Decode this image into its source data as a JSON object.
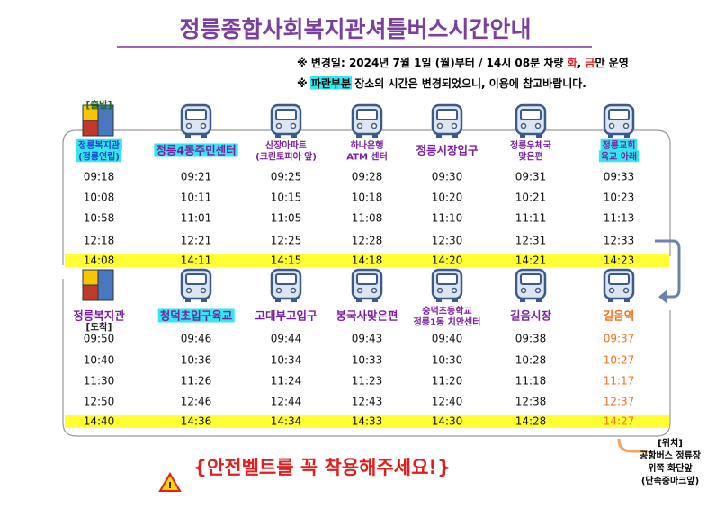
{
  "title": "정릉종합사회복지관셔틀버스시간안내",
  "notices": [
    {
      "parts": [
        {
          "text": "※ 변경일: 2024년 7월 1일 (월)부터  / 14시 08분 차량 "
        },
        {
          "text": "화",
          "color": "#e02020"
        },
        {
          "text": ", "
        },
        {
          "text": "금",
          "color": "#e02020"
        },
        {
          "text": "만 운영"
        }
      ]
    },
    {
      "parts": [
        {
          "text": "※ "
        },
        {
          "text": "파란부분",
          "highlight": true
        },
        {
          "text": " 장소의 시간은 변경되었으니, 이용에 참고바랍니다."
        }
      ]
    }
  ],
  "routes": [
    {
      "label": "[출발]",
      "highlight_row": 4,
      "stops": [
        {
          "name": [
            "정릉복지관",
            "(정릉연립)"
          ],
          "highlight": true,
          "color": "#1a3fcf",
          "small": true
        },
        {
          "name": [
            "정릉4동주민센터"
          ],
          "highlight": true,
          "color": "#7b1fa2"
        },
        {
          "name": [
            "산장아파트",
            "(크린토피아 앞)"
          ],
          "color": "#7b1fa2",
          "small": true
        },
        {
          "name": [
            "하나은행",
            "ATM 센터"
          ],
          "color": "#7b1fa2",
          "small": true
        },
        {
          "name": [
            "정릉시장입구"
          ],
          "color": "#7b1fa2"
        },
        {
          "name": [
            "정릉우체국",
            "맞은편"
          ],
          "color": "#7b1fa2",
          "small": true
        },
        {
          "name": [
            "정릉교회",
            "육교 아래"
          ],
          "highlight": true,
          "color": "#7b1fa2",
          "small": true
        }
      ],
      "times": [
        [
          "09:18",
          "09:21",
          "09:25",
          "09:28",
          "09:30",
          "09:31",
          "09:33"
        ],
        [
          "10:08",
          "10:11",
          "10:15",
          "10:18",
          "10:20",
          "10:21",
          "10:23"
        ],
        [
          "10:58",
          "11:01",
          "11:05",
          "11:08",
          "11:10",
          "11:11",
          "11:13"
        ],
        [
          "12:18",
          "12:21",
          "12:25",
          "12:28",
          "12:30",
          "12:31",
          "12:33"
        ],
        [
          "14:08",
          "14:11",
          "14:15",
          "14:18",
          "14:20",
          "14:21",
          "14:23"
        ]
      ]
    },
    {
      "label": "[도착]",
      "highlight_row": 4,
      "stops": [
        {
          "name": [
            "정릉복지관"
          ],
          "color": "#7b1fa2"
        },
        {
          "name": [
            "청덕초입구육교"
          ],
          "highlight": true,
          "color": "#7b1fa2"
        },
        {
          "name": [
            "고대부고입구"
          ],
          "color": "#7b1fa2"
        },
        {
          "name": [
            "봉국사맞은편"
          ],
          "color": "#7b1fa2"
        },
        {
          "name": [
            "숭덕초등학교",
            "정릉1동 치안센터"
          ],
          "color": "#7b1fa2",
          "small": true
        },
        {
          "name": [
            "길음시장"
          ],
          "color": "#7b1fa2"
        },
        {
          "name": [
            "길음역"
          ],
          "color": "#f07020",
          "time_color": "#f07020"
        }
      ],
      "times": [
        [
          "09:50",
          "09:46",
          "09:44",
          "09:43",
          "09:40",
          "09:38",
          "09:37"
        ],
        [
          "10:40",
          "10:36",
          "10:34",
          "10:33",
          "10:30",
          "10:28",
          "10:27"
        ],
        [
          "11:30",
          "11:26",
          "11:24",
          "11:23",
          "11:20",
          "11:18",
          "11:17"
        ],
        [
          "12:50",
          "12:46",
          "12:44",
          "12:43",
          "12:40",
          "12:38",
          "12:37"
        ],
        [
          "14:40",
          "14:36",
          "14:34",
          "14:33",
          "14:30",
          "14:28",
          "14:27"
        ]
      ]
    }
  ],
  "warning": "{안전벨트를   꼭 착용해주세요!}",
  "location": [
    "[위치]",
    "공항버스 정류장",
    "위쪽 화단앞",
    "(단속중마크앞)"
  ]
}
